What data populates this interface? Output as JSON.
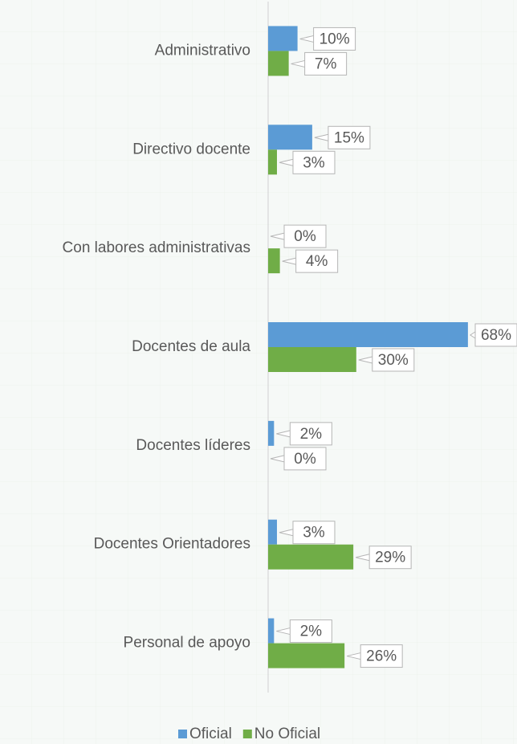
{
  "chart_data": {
    "type": "hbar",
    "categories": [
      "Administrativo",
      "Directivo docente",
      "Con labores administrativas",
      "Docentes de aula",
      "Docentes líderes",
      "Docentes Orientadores",
      "Personal de apoyo"
    ],
    "series": [
      {
        "name": "Oficial",
        "color": "#5b9bd5",
        "values": [
          10,
          15,
          0,
          68,
          2,
          3,
          2
        ],
        "value_labels": [
          "10%",
          "15%",
          "0%",
          "68%",
          "2%",
          "3%",
          "2%"
        ]
      },
      {
        "name": "No Oficial",
        "color": "#70ad47",
        "values": [
          7,
          3,
          4,
          30,
          0,
          29,
          26
        ],
        "value_labels": [
          "7%",
          "3%",
          "4%",
          "30%",
          "0%",
          "29%",
          "26%"
        ]
      }
    ],
    "xlim": [
      0,
      84.7
    ]
  }
}
